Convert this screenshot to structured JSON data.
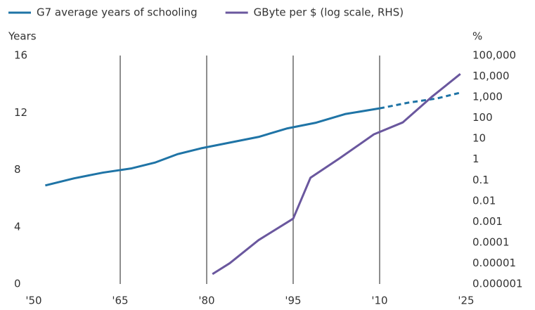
{
  "chart_data": {
    "type": "line",
    "left_axis_title": "Years",
    "right_axis_title": "%",
    "xlim": [
      1950,
      2025
    ],
    "xticks": [
      {
        "value": 1950,
        "label": "'50"
      },
      {
        "value": 1965,
        "label": "'65"
      },
      {
        "value": 1980,
        "label": "'80"
      },
      {
        "value": 1995,
        "label": "'95"
      },
      {
        "value": 2010,
        "label": "'10"
      },
      {
        "value": 2025,
        "label": "'25"
      }
    ],
    "ylim": [
      0,
      16
    ],
    "yticks": [
      0,
      4,
      8,
      12,
      16
    ],
    "y2lim": [
      1e-06,
      100000
    ],
    "y2log": true,
    "y2ticks": [
      1e-06,
      1e-05,
      0.0001,
      0.001,
      0.01,
      0.1,
      1,
      10,
      100,
      {
        "value": 1000,
        "label": "1,000"
      },
      {
        "value": 10000,
        "label": "10,000"
      },
      {
        "value": 100000,
        "label": "100,000"
      }
    ],
    "grid": "x",
    "series": [
      {
        "name": "G7 average years of schooling",
        "color": "#1f74a6",
        "projection_start": 2010,
        "x": [
          1952,
          1957,
          1962,
          1967,
          1971,
          1975,
          1979,
          1984,
          1989,
          1994,
          1999,
          2004,
          2010,
          2015,
          2020,
          2024
        ],
        "values": [
          6.9,
          7.4,
          7.8,
          8.1,
          8.5,
          9.1,
          9.5,
          9.9,
          10.3,
          10.9,
          11.3,
          11.9,
          12.3,
          12.7,
          13.0,
          13.4
        ]
      },
      {
        "name": "GByte per $ (log scale, RHS)",
        "color": "#6a579e",
        "axis": "y2",
        "x": [
          1981,
          1984,
          1989,
          1995,
          1998,
          2003,
          2009,
          2014,
          2019,
          2024
        ],
        "values": [
          3e-06,
          1e-05,
          0.00013,
          0.0014,
          0.13,
          1.1,
          16,
          60,
          1000,
          13000
        ]
      }
    ]
  }
}
